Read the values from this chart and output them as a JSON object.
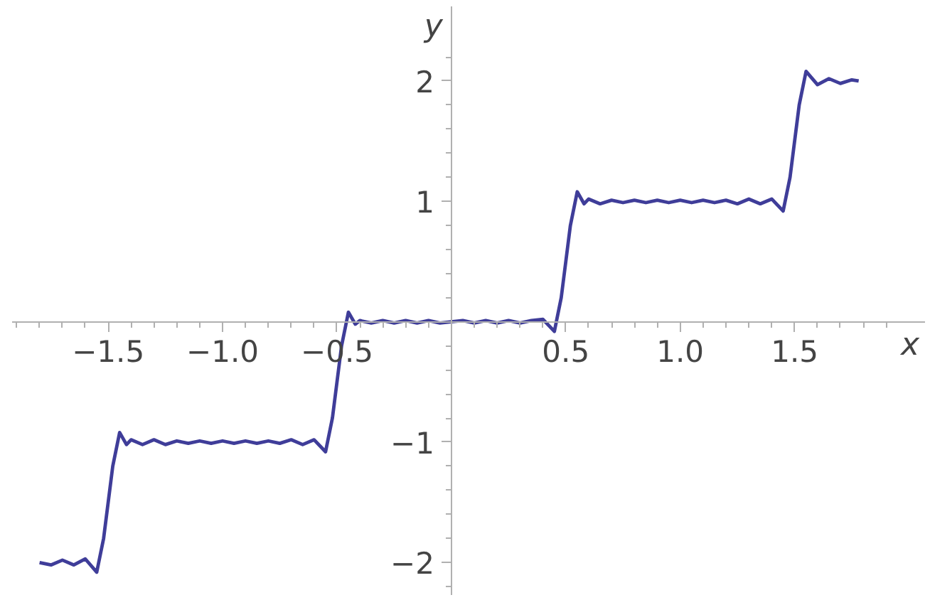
{
  "chart_data": {
    "type": "line",
    "xlabel": "x",
    "ylabel": "y",
    "xlim": [
      -1.92,
      2.07
    ],
    "ylim": [
      -2.27,
      2.62
    ],
    "xticks": [
      {
        "value": -1.5,
        "label": "−1.5"
      },
      {
        "value": -1.0,
        "label": "−1.0"
      },
      {
        "value": -0.5,
        "label": "−0.5"
      },
      0.5,
      {
        "value": 1.0,
        "label": "1.0"
      },
      1.5
    ],
    "yticks": [
      {
        "value": -2,
        "label": "−2"
      },
      {
        "value": -1,
        "label": "−1"
      },
      1,
      2
    ],
    "grid": false,
    "marker": "none",
    "line_style": "solid",
    "series": [
      {
        "color": "#3f3d99",
        "x": [
          -1.8,
          -1.75,
          -1.7,
          -1.65,
          -1.6,
          -1.55,
          -1.52,
          -1.5,
          -1.48,
          -1.45,
          -1.42,
          -1.4,
          -1.35,
          -1.3,
          -1.25,
          -1.2,
          -1.15,
          -1.1,
          -1.05,
          -1.0,
          -0.95,
          -0.9,
          -0.85,
          -0.8,
          -0.75,
          -0.7,
          -0.65,
          -0.6,
          -0.55,
          -0.52,
          -0.5,
          -0.48,
          -0.45,
          -0.42,
          -0.4,
          -0.35,
          -0.3,
          -0.25,
          -0.2,
          -0.15,
          -0.1,
          -0.05,
          0.0,
          0.05,
          0.1,
          0.15,
          0.2,
          0.25,
          0.3,
          0.35,
          0.4,
          0.45,
          0.48,
          0.5,
          0.52,
          0.55,
          0.58,
          0.6,
          0.65,
          0.7,
          0.75,
          0.8,
          0.85,
          0.9,
          0.95,
          1.0,
          1.05,
          1.1,
          1.15,
          1.2,
          1.25,
          1.3,
          1.35,
          1.4,
          1.45,
          1.48,
          1.5,
          1.52,
          1.55,
          1.6,
          1.65,
          1.7,
          1.75,
          1.78
        ],
        "values": [
          -2.0,
          -2.02,
          -1.98,
          -2.02,
          -1.97,
          -2.08,
          -1.8,
          -1.5,
          -1.2,
          -0.92,
          -1.02,
          -0.98,
          -1.02,
          -0.98,
          -1.02,
          -0.99,
          -1.01,
          -0.99,
          -1.01,
          -0.99,
          -1.01,
          -0.99,
          -1.01,
          -0.99,
          -1.01,
          -0.98,
          -1.02,
          -0.98,
          -1.08,
          -0.8,
          -0.5,
          -0.2,
          0.08,
          -0.02,
          0.01,
          -0.01,
          0.01,
          -0.01,
          0.01,
          -0.01,
          0.01,
          -0.01,
          0.0,
          0.01,
          -0.01,
          0.01,
          -0.01,
          0.01,
          -0.01,
          0.01,
          0.02,
          -0.08,
          0.2,
          0.5,
          0.8,
          1.08,
          0.98,
          1.02,
          0.98,
          1.01,
          0.99,
          1.01,
          0.99,
          1.01,
          0.99,
          1.01,
          0.99,
          1.01,
          0.99,
          1.01,
          0.98,
          1.02,
          0.98,
          1.02,
          0.92,
          1.2,
          1.5,
          1.8,
          2.08,
          1.97,
          2.02,
          1.98,
          2.01,
          2.0
        ]
      }
    ]
  }
}
